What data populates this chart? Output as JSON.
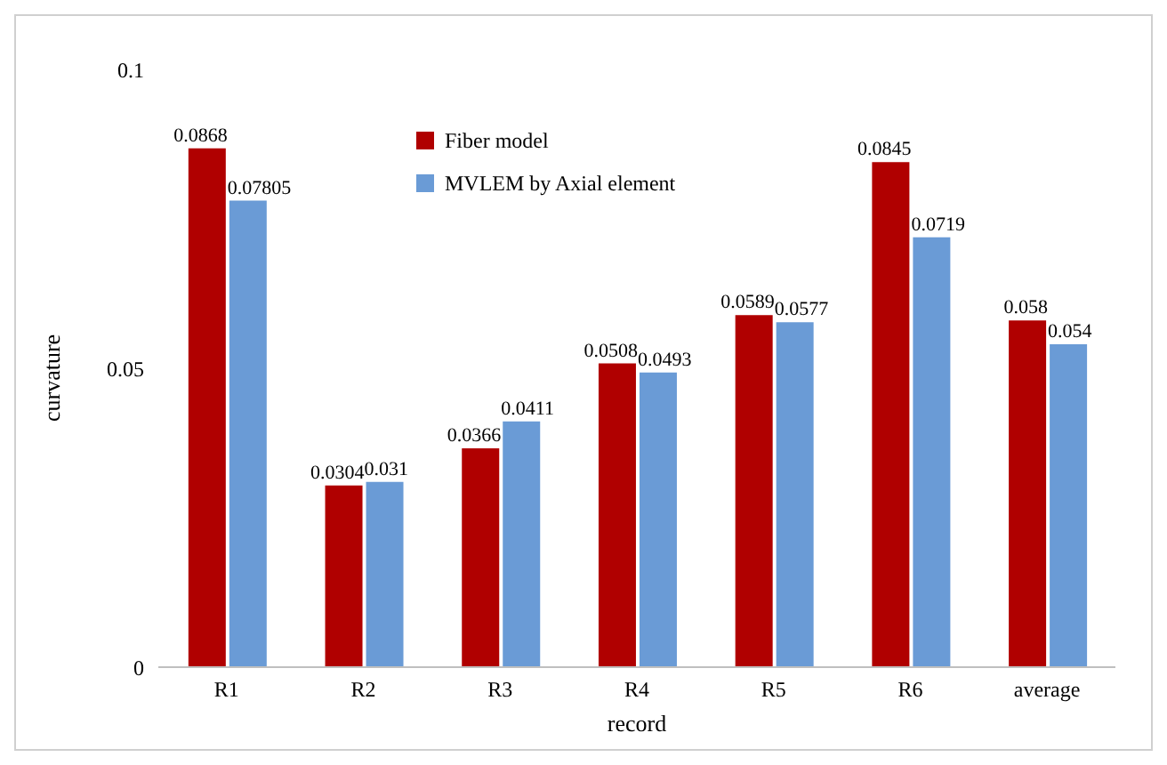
{
  "chart_data": {
    "type": "bar",
    "xlabel": "record",
    "ylabel": "curvature",
    "categories": [
      "R1",
      "R2",
      "R3",
      "R4",
      "R5",
      "R6",
      "average"
    ],
    "series": [
      {
        "name": "Fiber model",
        "color": "#b00000",
        "values": [
          0.0868,
          0.0304,
          0.0366,
          0.0508,
          0.0589,
          0.0845,
          0.058
        ]
      },
      {
        "name": "MVLEM by Axial element",
        "color": "#6a9bd6",
        "values": [
          0.07805,
          0.031,
          0.0411,
          0.0493,
          0.0577,
          0.0719,
          0.054
        ]
      }
    ],
    "ylim": [
      0,
      0.1
    ],
    "yticks": [
      0,
      0.05,
      0.1
    ],
    "grid": false,
    "legend": "top",
    "data_labels": true
  }
}
